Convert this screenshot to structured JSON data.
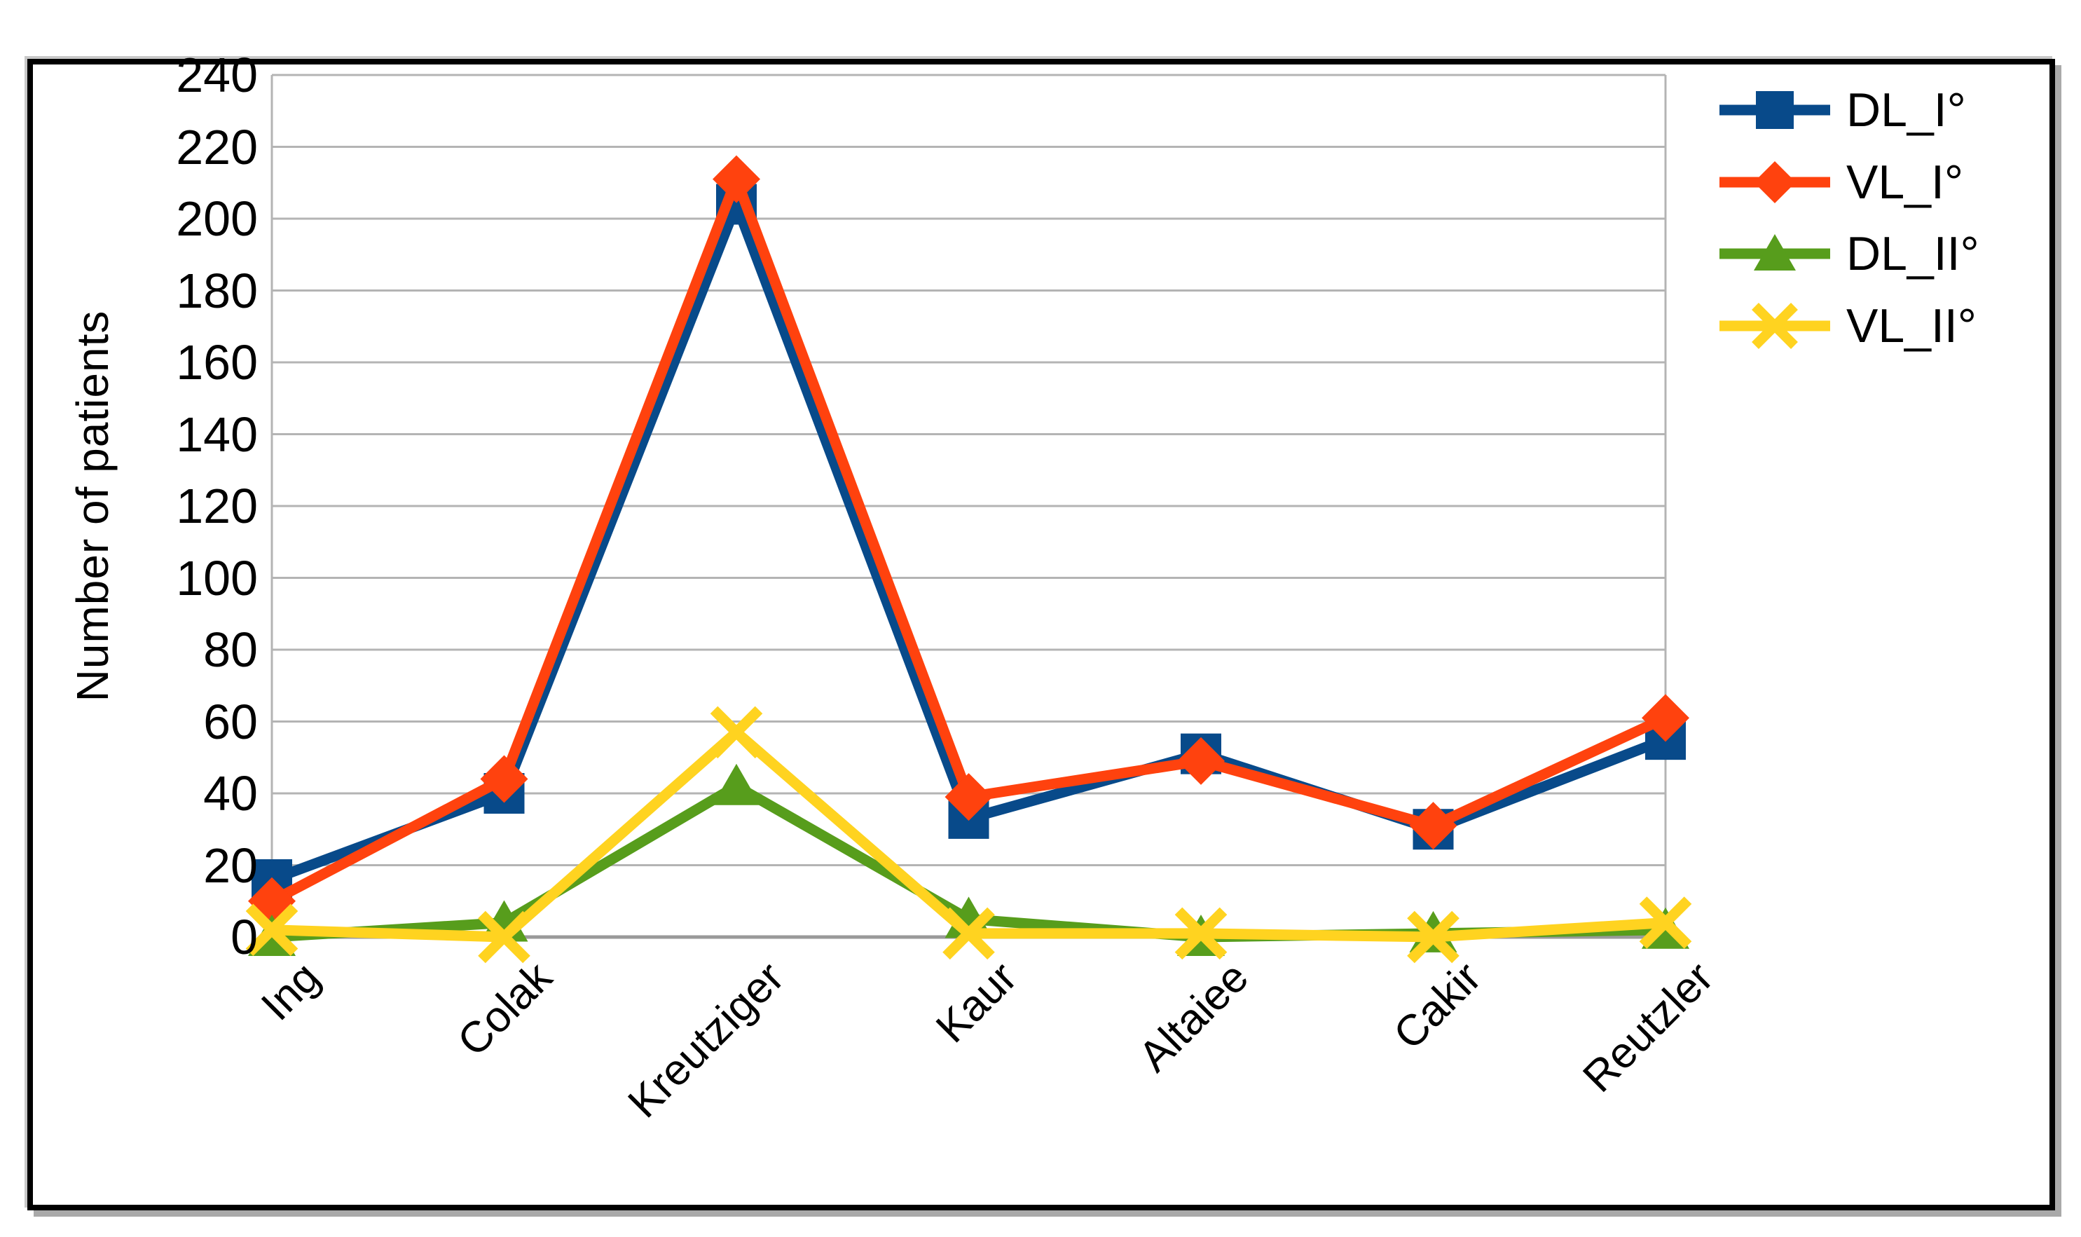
{
  "chart_data": {
    "type": "line",
    "title": "",
    "xlabel": "",
    "ylabel": "Number of patients",
    "categories": [
      "Ing",
      "Colak",
      "Kreutziger",
      "Kaur",
      "Altaiee",
      "Cakir",
      "Reutzler"
    ],
    "series": [
      {
        "name": "DL_I°",
        "marker": "square",
        "color": "#084a8a",
        "values": [
          16,
          40,
          204,
          33,
          51,
          30,
          55
        ]
      },
      {
        "name": "VL_I°",
        "marker": "diamond",
        "color": "#ff420e",
        "values": [
          10,
          44,
          211,
          39,
          49,
          31,
          61
        ]
      },
      {
        "name": "DL_II°",
        "marker": "triangle",
        "color": "#579d1c",
        "values": [
          0,
          4,
          42,
          5,
          0,
          1,
          2
        ]
      },
      {
        "name": "VL_II°",
        "marker": "x-cross",
        "color": "#ffd320",
        "values": [
          2,
          0,
          57,
          1,
          1,
          0,
          4
        ]
      }
    ],
    "ylim": [
      0,
      240
    ],
    "yticks": [
      0,
      20,
      40,
      60,
      80,
      100,
      120,
      140,
      160,
      180,
      200,
      220,
      240
    ],
    "grid": "horizontal",
    "legend_position": "top-right"
  },
  "colors": {
    "background": "#ffffff",
    "gridline": "#b4b4b4",
    "axis_line": "#9a9a9a",
    "outer_border": "#000000",
    "outer_border_shadow": "#a9a9a9",
    "text": "#000000"
  }
}
